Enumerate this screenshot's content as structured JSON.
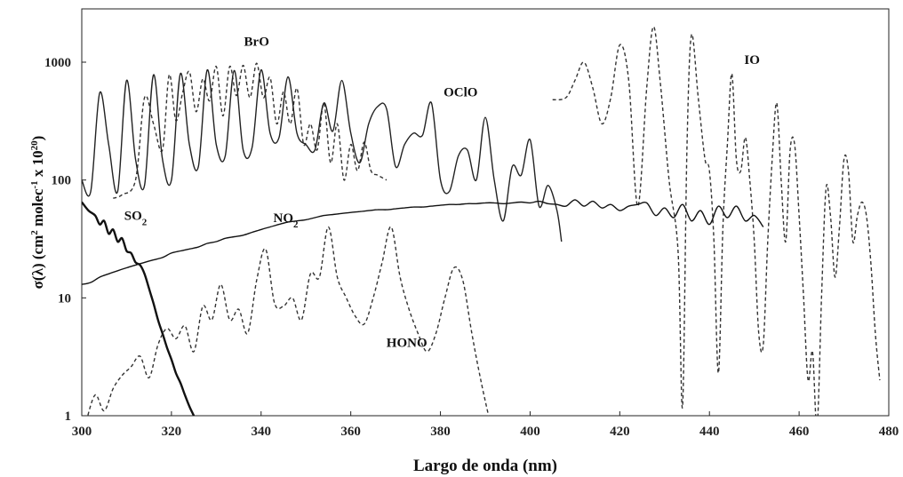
{
  "chart_data": {
    "type": "line",
    "title": "",
    "xlabel": "Largo de onda (nm)",
    "ylabel": "σ(λ) (cm² molec⁻¹ x 10²⁰)",
    "ylabel_parts": {
      "pre": "σ(λ) (cm",
      "sup1": "2",
      "mid": " molec",
      "sup2": "-1",
      "post1": " x 10",
      "sup3": "20",
      "post2": ")"
    },
    "xlim": [
      300,
      480
    ],
    "ylim": [
      1,
      2500
    ],
    "yscale": "log",
    "x_ticks": [
      300,
      320,
      340,
      360,
      380,
      400,
      420,
      440,
      460,
      480
    ],
    "x_tick_labels": [
      "300",
      "320",
      "340",
      "360",
      "380",
      "400",
      "420",
      "440",
      "460",
      "480"
    ],
    "y_ticks": [
      1,
      10,
      100,
      1000
    ],
    "y_tick_labels": [
      "1",
      "10",
      "100",
      "1000"
    ],
    "grid": false,
    "legend": "none",
    "series": [
      {
        "label": "BrO",
        "label_parts": {
          "main": "BrO",
          "sub": ""
        },
        "label_at": [
          339,
          1500
        ],
        "color": "#333333",
        "dash": "dashed",
        "x": [
          307,
          309,
          312,
          314,
          316,
          318,
          319.5,
          321,
          322.5,
          324,
          325.5,
          327,
          328.5,
          330,
          331.5,
          333,
          334.5,
          336,
          337.5,
          339,
          340.5,
          342,
          343.5,
          345,
          346.5,
          348,
          349.5,
          351,
          352.5,
          354,
          355.5,
          357,
          358.5,
          360,
          361.5,
          363,
          364.5,
          366,
          368
        ],
        "y": [
          70,
          75,
          100,
          500,
          300,
          180,
          780,
          320,
          550,
          830,
          380,
          720,
          470,
          920,
          350,
          920,
          520,
          940,
          500,
          980,
          500,
          740,
          300,
          560,
          300,
          600,
          200,
          300,
          180,
          450,
          140,
          300,
          100,
          200,
          120,
          210,
          120,
          110,
          100
        ]
      },
      {
        "label": "OClO",
        "label_parts": {
          "main": "OClO",
          "sub": ""
        },
        "label_at": [
          384.5,
          560
        ],
        "color": "#222222",
        "dash": "solid",
        "x": [
          300,
          302,
          304,
          306,
          308,
          310,
          312,
          314,
          316,
          318,
          320,
          322,
          324,
          326,
          328,
          330,
          332,
          334,
          336,
          338,
          340,
          342,
          344,
          346,
          348,
          350,
          352,
          354,
          356,
          358,
          360,
          362,
          364,
          366,
          368,
          370,
          372,
          374,
          376,
          378,
          380,
          382,
          384,
          386,
          388,
          390,
          392,
          394,
          396,
          398,
          400,
          402,
          404,
          406,
          407
        ],
        "y": [
          100,
          80,
          550,
          200,
          80,
          700,
          150,
          90,
          780,
          150,
          100,
          800,
          200,
          130,
          860,
          200,
          160,
          850,
          180,
          190,
          860,
          250,
          230,
          750,
          250,
          200,
          180,
          450,
          260,
          700,
          250,
          140,
          300,
          420,
          400,
          130,
          200,
          250,
          240,
          450,
          100,
          80,
          160,
          180,
          100,
          340,
          100,
          45,
          130,
          110,
          220,
          60,
          90,
          55,
          30
        ]
      },
      {
        "label": "IO",
        "label_parts": {
          "main": "IO",
          "sub": ""
        },
        "label_at": [
          449.5,
          1050
        ],
        "color": "#333333",
        "dash": "dashed",
        "x": [
          405,
          408,
          410,
          412,
          414,
          416,
          418,
          420,
          422,
          424,
          426,
          427.5,
          429,
          431,
          433,
          434,
          435,
          436,
          437.5,
          439,
          440,
          441,
          442,
          443,
          444,
          445,
          446,
          447,
          448,
          449,
          450,
          451,
          452,
          453,
          454,
          455,
          456,
          457,
          458,
          459,
          460,
          461,
          462,
          463,
          464,
          465,
          466,
          467,
          468,
          469,
          470,
          471,
          472,
          473,
          474,
          475,
          476,
          477,
          478
        ],
        "y": [
          480,
          500,
          700,
          1000,
          600,
          300,
          500,
          1400,
          700,
          60,
          600,
          2000,
          700,
          100,
          25,
          1.2,
          200,
          1700,
          500,
          150,
          120,
          30,
          2.3,
          40,
          200,
          800,
          150,
          120,
          230,
          100,
          30,
          5,
          4,
          30,
          150,
          450,
          100,
          30,
          180,
          200,
          50,
          10,
          2,
          3.5,
          0.8,
          10,
          85,
          50,
          15,
          40,
          150,
          120,
          30,
          50,
          65,
          50,
          20,
          5,
          2
        ]
      },
      {
        "label": "NO₂",
        "label_parts": {
          "main": "NO",
          "sub": "2"
        },
        "label_at": [
          345.5,
          48
        ],
        "color": "#111111",
        "dash": "solid",
        "x": [
          300,
          302,
          304,
          306,
          308,
          310,
          312,
          314,
          316,
          318,
          320,
          322,
          324,
          326,
          328,
          330,
          332,
          334,
          336,
          338,
          340,
          342,
          344,
          346,
          348,
          350,
          352,
          354,
          356,
          358,
          360,
          362,
          364,
          366,
          368,
          370,
          372,
          374,
          376,
          378,
          380,
          382,
          384,
          386,
          388,
          390,
          392,
          394,
          396,
          398,
          400,
          402,
          404,
          406,
          408,
          410,
          412,
          414,
          416,
          418,
          420,
          422,
          424,
          426,
          428,
          430,
          432,
          434,
          436,
          438,
          440,
          442,
          444,
          446,
          448,
          450,
          452
        ],
        "y": [
          13,
          13.5,
          15,
          16,
          17,
          18,
          19,
          20,
          21,
          22,
          24,
          25,
          26,
          27,
          29,
          30,
          32,
          33,
          34,
          36,
          38,
          40,
          42,
          44,
          45,
          46,
          48,
          50,
          51,
          52,
          53,
          54,
          55,
          56,
          56,
          57,
          58,
          59,
          59,
          60,
          61,
          62,
          62,
          63,
          63,
          64,
          64,
          63,
          64,
          65,
          64,
          66,
          63,
          62,
          60,
          68,
          60,
          66,
          58,
          62,
          55,
          60,
          62,
          64,
          50,
          58,
          48,
          62,
          45,
          55,
          42,
          60,
          48,
          60,
          45,
          50,
          40
        ]
      },
      {
        "label": "SO₂",
        "label_parts": {
          "main": "SO",
          "sub": "2"
        },
        "label_at": [
          312,
          50
        ],
        "color": "#111111",
        "dash": "solid",
        "width": 2.4,
        "x": [
          300,
          301.5,
          303,
          304,
          305,
          306,
          307,
          308,
          309,
          310,
          311,
          312,
          313,
          314,
          315,
          316,
          317,
          318,
          319,
          320,
          321,
          322,
          323,
          324,
          325
        ],
        "y": [
          65,
          55,
          50,
          42,
          45,
          35,
          38,
          30,
          32,
          25,
          24,
          20,
          19,
          16,
          12,
          9,
          6.5,
          5,
          3.8,
          3,
          2.3,
          1.9,
          1.5,
          1.2,
          1
        ]
      },
      {
        "label": "HONO",
        "label_parts": {
          "main": "HONO",
          "sub": ""
        },
        "label_at": [
          372.5,
          4.2
        ],
        "color": "#333333",
        "dash": "dashed",
        "x": [
          301,
          303,
          305,
          307,
          309,
          311,
          313,
          315,
          317,
          319,
          321,
          323,
          325,
          327,
          329,
          331,
          333,
          335,
          337,
          339,
          341,
          343,
          345,
          347,
          349,
          351,
          353,
          355,
          357,
          359,
          361,
          363,
          365,
          367,
          369,
          371,
          373,
          375,
          377,
          379,
          381,
          383,
          385,
          387,
          389,
          391
        ],
        "y": [
          0.9,
          1.5,
          1.1,
          1.7,
          2.2,
          2.6,
          3.2,
          2.1,
          4,
          5.5,
          4.5,
          5.8,
          3.5,
          8.5,
          6.5,
          13,
          6.5,
          8,
          5,
          14,
          26,
          9,
          8.5,
          10,
          6.5,
          16,
          15,
          40,
          15,
          10,
          7,
          6,
          10,
          20,
          40,
          15,
          8,
          5,
          3.5,
          5,
          10,
          18,
          14,
          5,
          2,
          0.9
        ]
      }
    ]
  }
}
